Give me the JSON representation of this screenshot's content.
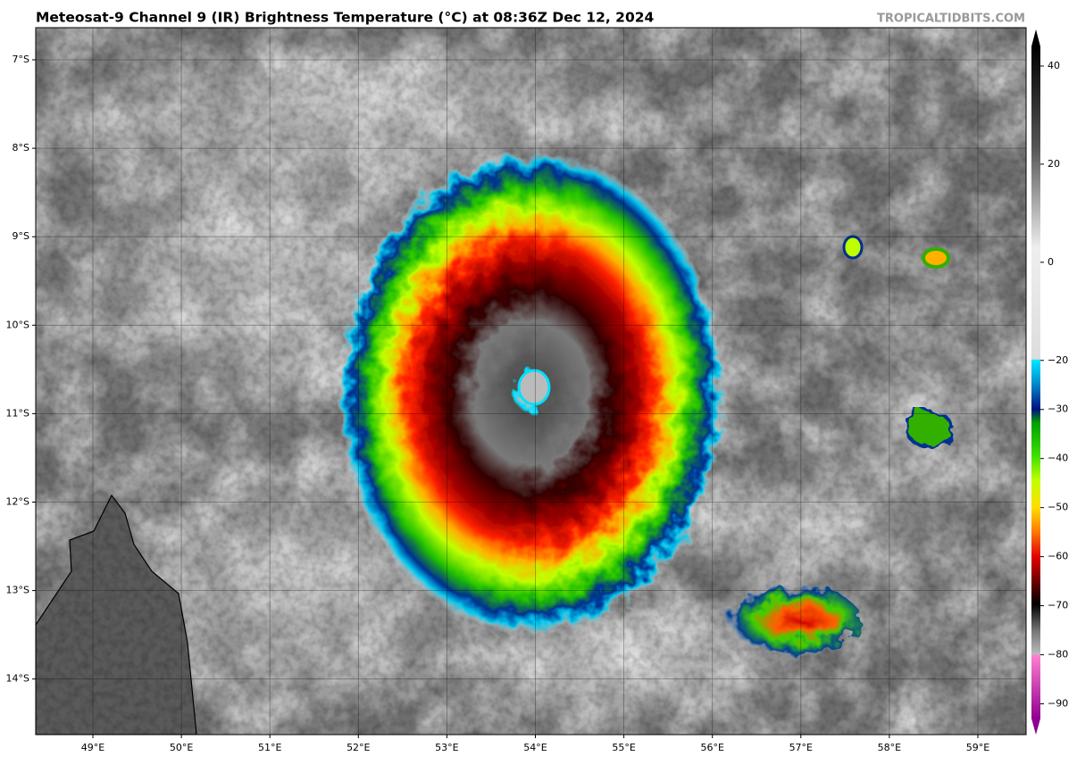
{
  "header": {
    "title": "Meteosat-9 Channel 9 (IR) Brightness Temperature (°C) at 08:36Z Dec 12, 2024",
    "watermark": "TROPICALTIDBITS.COM"
  },
  "map": {
    "lat_labels": [
      "7°S",
      "8°S",
      "9°S",
      "10°S",
      "11°S",
      "12°S",
      "13°S",
      "14°S"
    ],
    "lon_labels": [
      "49°E",
      "50°E",
      "51°E",
      "52°E",
      "53°E",
      "54°E",
      "55°E",
      "56°E",
      "57°E",
      "58°E",
      "59°E"
    ]
  },
  "colorbar": {
    "lim": [
      -93,
      44
    ],
    "ticks": [
      40,
      20,
      0,
      {
        "value": -20,
        "label": "−20"
      },
      {
        "value": -30,
        "label": "−30"
      },
      {
        "value": -40,
        "label": "−40"
      },
      {
        "value": -50,
        "label": "−50"
      },
      {
        "value": -60,
        "label": "−60"
      },
      {
        "value": -70,
        "label": "−70"
      },
      {
        "value": -80,
        "label": "−80"
      },
      {
        "value": -90,
        "label": "−90"
      }
    ]
  }
}
